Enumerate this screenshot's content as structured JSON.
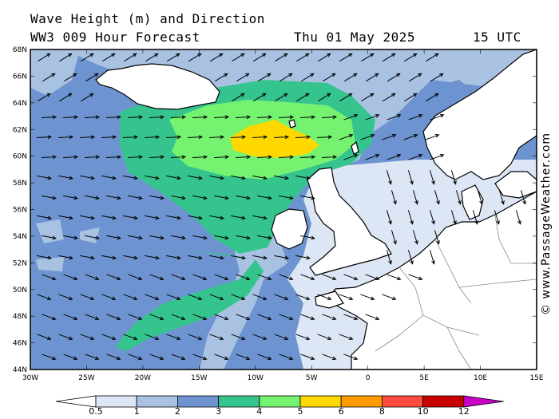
{
  "header": {
    "title": "Wave Height (m) and Direction",
    "model": "WW3 009 Hour Forecast",
    "date": "Thu 01 May 2025",
    "time": "15 UTC"
  },
  "axes": {
    "lat_labels": [
      "68N",
      "66N",
      "64N",
      "62N",
      "60N",
      "58N",
      "56N",
      "54N",
      "52N",
      "50N",
      "48N",
      "46N",
      "44N"
    ],
    "lon_labels": [
      "30W",
      "25W",
      "20W",
      "15W",
      "10W",
      "5W",
      "0",
      "5E",
      "10E",
      "15E"
    ]
  },
  "legend": {
    "ticks": [
      "0.5",
      "1",
      "2",
      "3",
      "4",
      "5",
      "6",
      "8",
      "10",
      "12"
    ],
    "colors": [
      "#dce6f4",
      "#a9c2e2",
      "#6d94d0",
      "#36c48e",
      "#75f26f",
      "#ffd800",
      "#ff9a00",
      "#ff4a40",
      "#c80000",
      "#c800c8"
    ]
  },
  "colors": {
    "land": "#ffffff",
    "sea_base": "#6d94d0",
    "arrow": "#000000"
  },
  "copyright": "© www.PassageWeather.com"
}
